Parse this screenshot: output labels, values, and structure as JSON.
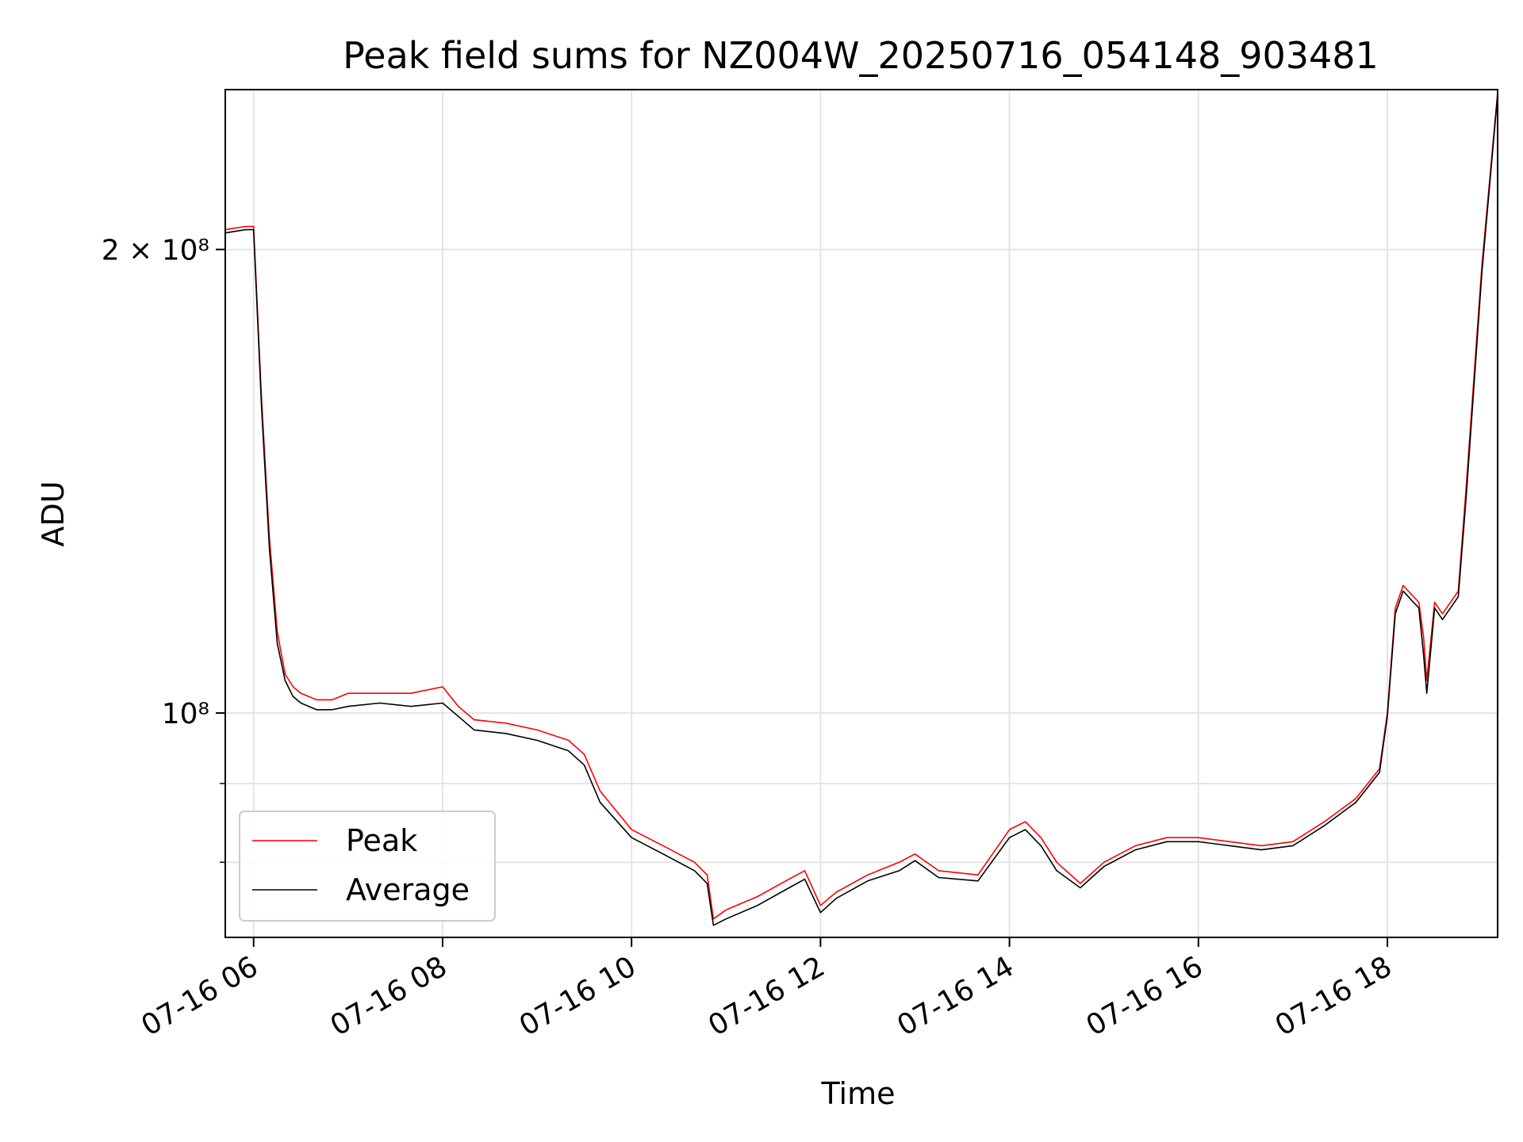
{
  "chart_data": {
    "type": "line",
    "title": "Peak field sums for NZ004W_20250716_054148_903481",
    "xlabel": "Time",
    "ylabel": "ADU",
    "y_scale": "log",
    "ylim": [
      71500000,
      254000000
    ],
    "xlim": [
      "07-16 05:42",
      "07-16 19:10"
    ],
    "grid": true,
    "legend_position": "lower-left",
    "x_ticks": [
      "07-16 06",
      "07-16 08",
      "07-16 10",
      "07-16 12",
      "07-16 14",
      "07-16 16",
      "07-16 18"
    ],
    "y_ticks": [
      {
        "value": 200000000,
        "label": "2 × 10⁸"
      },
      {
        "value": 100000000,
        "label": "10⁸"
      }
    ],
    "y_minor_ticks": [
      80000000,
      90000000
    ],
    "colors": {
      "Peak": "#ff0000",
      "Average": "#000000"
    },
    "series": [
      {
        "name": "Peak",
        "x": [
          "05:42",
          "05:55",
          "06:00",
          "06:05",
          "06:10",
          "06:15",
          "06:20",
          "06:25",
          "06:30",
          "06:40",
          "06:50",
          "07:00",
          "07:20",
          "07:40",
          "08:00",
          "08:10",
          "08:20",
          "08:40",
          "09:00",
          "09:20",
          "09:30",
          "09:40",
          "10:00",
          "10:20",
          "10:40",
          "10:48",
          "10:52",
          "11:00",
          "11:20",
          "11:40",
          "11:50",
          "12:00",
          "12:10",
          "12:30",
          "12:50",
          "13:00",
          "13:15",
          "13:40",
          "14:00",
          "14:10",
          "14:20",
          "14:30",
          "14:45",
          "15:00",
          "15:20",
          "15:40",
          "16:00",
          "16:20",
          "16:40",
          "17:00",
          "17:20",
          "17:40",
          "17:55",
          "18:00",
          "18:05",
          "18:10",
          "18:20",
          "18:23",
          "18:25",
          "18:30",
          "18:35",
          "18:45",
          "18:50",
          "19:00",
          "19:10"
        ],
        "y": [
          206000000,
          207000000,
          207000000,
          160000000,
          130000000,
          113000000,
          106000000,
          104000000,
          103000000,
          102000000,
          102000000,
          103000000,
          103000000,
          103000000,
          104000000,
          101000000,
          99000000,
          98500000,
          97500000,
          96000000,
          94000000,
          89000000,
          84000000,
          82000000,
          80000000,
          78500000,
          73500000,
          74500000,
          76000000,
          78000000,
          79000000,
          75000000,
          76500000,
          78500000,
          80000000,
          81000000,
          79000000,
          78500000,
          84000000,
          85000000,
          83000000,
          80000000,
          77500000,
          80000000,
          82000000,
          83000000,
          83000000,
          82500000,
          82000000,
          82500000,
          85000000,
          88000000,
          92000000,
          100000000,
          117000000,
          121000000,
          118000000,
          112000000,
          105000000,
          118000000,
          116000000,
          120000000,
          140000000,
          195000000,
          253000000
        ]
      },
      {
        "name": "Average",
        "x": [
          "05:42",
          "05:55",
          "06:00",
          "06:05",
          "06:10",
          "06:15",
          "06:20",
          "06:25",
          "06:30",
          "06:40",
          "06:50",
          "07:00",
          "07:20",
          "07:40",
          "08:00",
          "08:10",
          "08:20",
          "08:40",
          "09:00",
          "09:20",
          "09:30",
          "09:40",
          "10:00",
          "10:20",
          "10:40",
          "10:48",
          "10:52",
          "11:00",
          "11:20",
          "11:40",
          "11:50",
          "12:00",
          "12:10",
          "12:30",
          "12:50",
          "13:00",
          "13:15",
          "13:40",
          "14:00",
          "14:10",
          "14:20",
          "14:30",
          "14:45",
          "15:00",
          "15:20",
          "15:40",
          "16:00",
          "16:20",
          "16:40",
          "17:00",
          "17:20",
          "17:40",
          "17:55",
          "18:00",
          "18:05",
          "18:10",
          "18:20",
          "18:23",
          "18:25",
          "18:30",
          "18:35",
          "18:45",
          "18:50",
          "19:00",
          "19:10"
        ],
        "y": [
          205000000,
          206000000,
          206000000,
          158000000,
          128000000,
          111000000,
          105000000,
          102500000,
          101500000,
          100500000,
          100500000,
          101000000,
          101500000,
          101000000,
          101500000,
          99500000,
          97500000,
          97000000,
          96000000,
          94500000,
          92500000,
          87500000,
          83000000,
          81000000,
          79000000,
          77500000,
          72800000,
          73500000,
          75000000,
          77000000,
          78000000,
          74200000,
          75800000,
          77800000,
          79000000,
          80200000,
          78200000,
          77800000,
          83000000,
          84000000,
          82000000,
          79000000,
          77000000,
          79500000,
          81500000,
          82500000,
          82500000,
          82000000,
          81500000,
          82000000,
          84500000,
          87500000,
          91500000,
          99500000,
          116000000,
          120000000,
          117000000,
          109000000,
          103000000,
          117000000,
          115000000,
          119000000,
          138000000,
          193000000,
          252000000
        ]
      }
    ]
  }
}
